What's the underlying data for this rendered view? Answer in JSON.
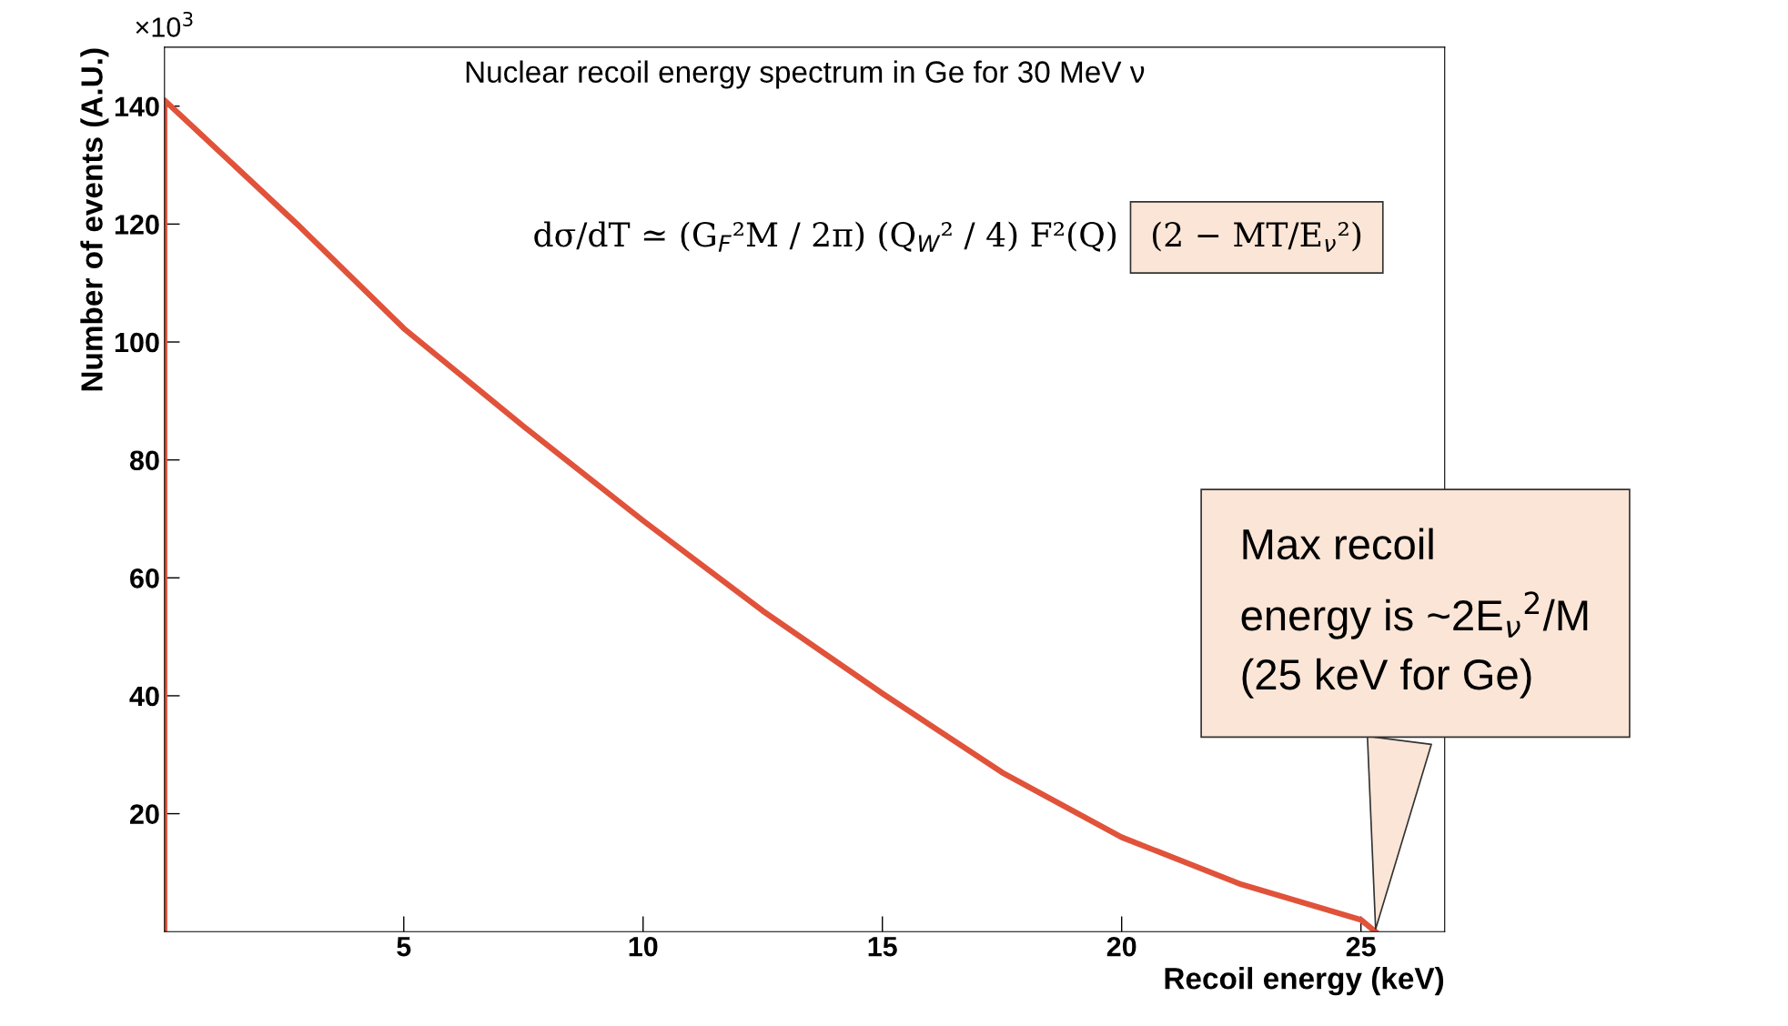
{
  "chart_data": {
    "type": "line",
    "title": "Nuclear recoil energy spectrum in Ge for 30 MeV ν",
    "xlabel": "Recoil energy (keV)",
    "ylabel": "Number of events (A.U.)",
    "x": [
      0,
      0,
      2.77,
      5,
      7.5,
      10,
      12.5,
      15,
      17.5,
      20,
      22.5,
      25,
      25.3
    ],
    "series": [
      {
        "color": "#e0533a",
        "values": [
          0,
          141,
          120,
          102.3,
          85.7,
          69.7,
          54.4,
          40.4,
          27,
          16,
          8,
          2,
          0
        ]
      }
    ],
    "xlim": [
      0,
      26.75
    ],
    "ylim": [
      0,
      150
    ],
    "xticks": [
      5,
      10,
      15,
      20,
      25
    ],
    "yticks": [
      20,
      40,
      60,
      80,
      100,
      120,
      140
    ],
    "grid": false,
    "legend": false,
    "marker": "none",
    "line_style": "solid",
    "annotations": [
      "×10$^{3}$",
      "dσ/dT ≃ (G$_{F}$²M / 2π) (Q$_{W}$² / 4) F²(Q)",
      "(2 − MT/E$_{ν}$²)",
      {
        "text": "Max recoil\nenergy is ~2E$_{ν}$$^{2}$/M\n(25 keV for Ge)",
        "x": 25.3,
        "y": 0
      }
    ]
  }
}
